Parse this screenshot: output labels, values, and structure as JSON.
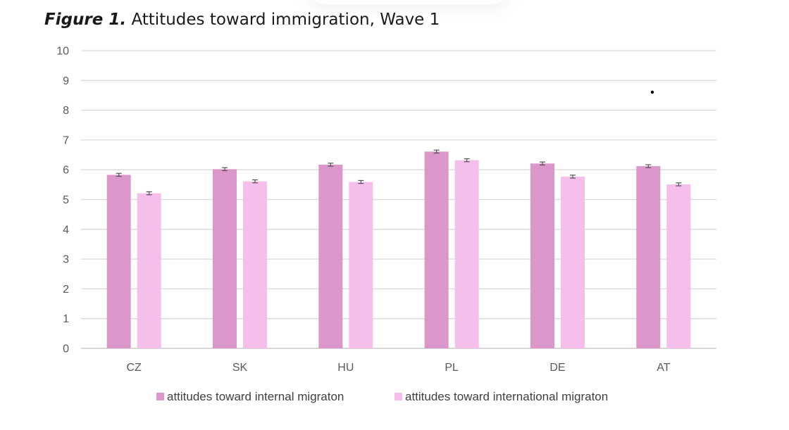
{
  "figure": {
    "label": "Figure 1.",
    "caption": "Attitudes toward immigration, Wave 1"
  },
  "chart_data": {
    "type": "bar",
    "title": "Attitudes toward immigration, Wave 1",
    "xlabel": "",
    "ylabel": "",
    "ylim": [
      0,
      10
    ],
    "yticks": [
      0,
      1,
      2,
      3,
      4,
      5,
      6,
      7,
      8,
      9,
      10
    ],
    "grid": true,
    "legend_position": "bottom",
    "categories": [
      "CZ",
      "SK",
      "HU",
      "PL",
      "DE",
      "AT"
    ],
    "series": [
      {
        "name": "attitudes toward internal migraton",
        "color": "#DB97C9",
        "values": [
          5.83,
          6.02,
          6.17,
          6.61,
          6.21,
          6.12
        ],
        "error": [
          0.05,
          0.05,
          0.05,
          0.05,
          0.05,
          0.05
        ]
      },
      {
        "name": "attitudes toward international migraton",
        "color": "#F6BEEA",
        "values": [
          5.21,
          5.61,
          5.59,
          6.32,
          5.77,
          5.51
        ],
        "error": [
          0.05,
          0.05,
          0.05,
          0.05,
          0.05,
          0.05
        ]
      }
    ]
  }
}
